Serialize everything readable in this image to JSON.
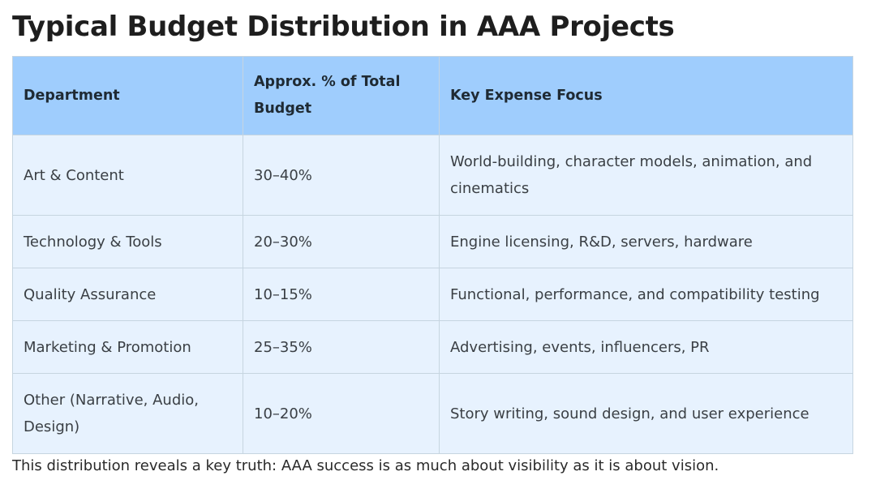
{
  "title": "Typical Budget Distribution in AAA Projects",
  "table": {
    "headers": {
      "department": "Department",
      "percent": "Approx. % of Total Budget",
      "focus": "Key Expense Focus"
    },
    "rows": [
      {
        "department": "Art & Content",
        "percent": "30–40%",
        "focus": "World-building, character models, animation, and cinematics"
      },
      {
        "department": "Technology & Tools",
        "percent": "20–30%",
        "focus": "Engine licensing, R&D, servers, hardware"
      },
      {
        "department": "Quality Assurance",
        "percent": "10–15%",
        "focus": "Functional, performance, and compatibility testing"
      },
      {
        "department": "Marketing & Promotion",
        "percent": "25–35%",
        "focus": "Advertising, events, influencers, PR"
      },
      {
        "department": "Other (Narrative, Audio, Design)",
        "percent": "10–20%",
        "focus": "Story writing, sound design, and user experience"
      }
    ]
  },
  "footnote": "This distribution reveals a key truth: AAA success is as much about visibility as it is about vision."
}
